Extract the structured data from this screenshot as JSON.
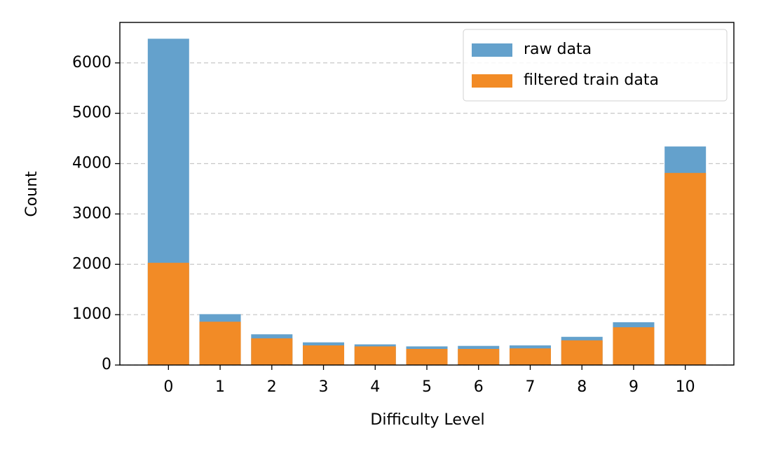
{
  "chart_data": {
    "type": "bar",
    "x_label": "Difficulty Level",
    "y_label": "Count",
    "x": [
      0,
      1,
      2,
      3,
      4,
      5,
      6,
      7,
      8,
      9,
      10
    ],
    "xlim": [
      -0.94,
      10.94
    ],
    "xticks": [
      0,
      1,
      2,
      3,
      4,
      5,
      6,
      7,
      8,
      9,
      10
    ],
    "ylim": [
      0,
      6804
    ],
    "yticks": [
      0,
      1000,
      2000,
      3000,
      4000,
      5000,
      6000
    ],
    "grid": true,
    "legend": "upper right",
    "series": [
      {
        "name": "raw data",
        "color": "#64a1cc",
        "values": [
          6480,
          1010,
          610,
          450,
          410,
          370,
          380,
          390,
          560,
          850,
          4340
        ]
      },
      {
        "name": "filtered train data",
        "color": "#f28b26",
        "values": [
          2030,
          860,
          530,
          390,
          370,
          320,
          320,
          330,
          490,
          750,
          3815
        ]
      }
    ]
  }
}
